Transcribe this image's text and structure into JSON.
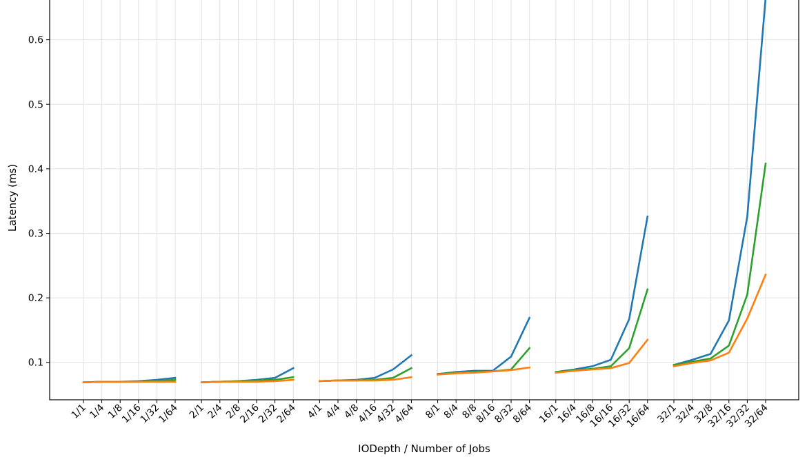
{
  "chart_data": {
    "type": "line",
    "title": "",
    "xlabel": "IODepth / Number of Jobs",
    "ylabel": "Latency (ms)",
    "ylim": [
      0.042,
      0.668
    ],
    "yticks": [
      0.1,
      0.2,
      0.3,
      0.4,
      0.5,
      0.6
    ],
    "ytick_labels": [
      "0.1",
      "0.2",
      "0.3",
      "0.4",
      "0.5",
      "0.6"
    ],
    "grid": true,
    "legend": false,
    "categories": [
      "1/1",
      "1/4",
      "1/8",
      "1/16",
      "1/32",
      "1/64",
      "2/1",
      "2/4",
      "2/8",
      "2/16",
      "2/32",
      "2/64",
      "4/1",
      "4/4",
      "4/8",
      "4/16",
      "4/32",
      "4/64",
      "8/1",
      "8/4",
      "8/8",
      "8/16",
      "8/32",
      "8/64",
      "16/1",
      "16/4",
      "16/8",
      "16/16",
      "16/32",
      "16/64",
      "32/1",
      "32/4",
      "32/8",
      "32/16",
      "32/32",
      "32/64"
    ],
    "group_size": 6,
    "series": [
      {
        "color": "#1f77b4",
        "values": [
          0.069,
          0.07,
          0.07,
          0.071,
          0.073,
          0.076,
          0.069,
          0.07,
          0.071,
          0.073,
          0.076,
          0.091,
          0.071,
          0.072,
          0.073,
          0.076,
          0.089,
          0.111,
          0.082,
          0.085,
          0.087,
          0.087,
          0.109,
          0.169,
          0.085,
          0.089,
          0.094,
          0.104,
          0.167,
          0.326,
          0.096,
          0.104,
          0.113,
          0.165,
          0.326,
          0.665
        ]
      },
      {
        "color": "#2ca02c",
        "values": [
          0.069,
          0.07,
          0.07,
          0.07,
          0.071,
          0.073,
          0.069,
          0.07,
          0.071,
          0.072,
          0.073,
          0.077,
          0.071,
          0.072,
          0.072,
          0.073,
          0.076,
          0.091,
          0.082,
          0.084,
          0.085,
          0.086,
          0.089,
          0.122,
          0.085,
          0.088,
          0.09,
          0.094,
          0.122,
          0.213,
          0.096,
          0.101,
          0.106,
          0.126,
          0.205,
          0.408
        ]
      },
      {
        "color": "#ff7f0e",
        "values": [
          0.069,
          0.07,
          0.07,
          0.07,
          0.07,
          0.07,
          0.069,
          0.07,
          0.07,
          0.07,
          0.071,
          0.073,
          0.071,
          0.072,
          0.072,
          0.072,
          0.073,
          0.077,
          0.081,
          0.083,
          0.084,
          0.086,
          0.088,
          0.092,
          0.084,
          0.087,
          0.089,
          0.091,
          0.099,
          0.135,
          0.094,
          0.099,
          0.103,
          0.115,
          0.168,
          0.236
        ]
      }
    ]
  }
}
